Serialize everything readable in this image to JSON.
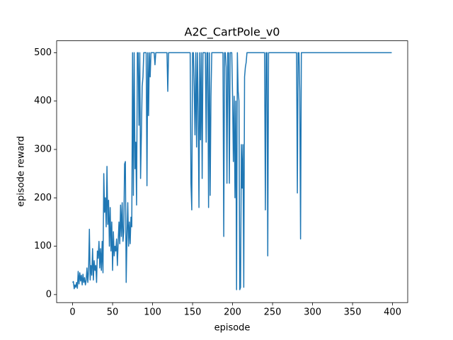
{
  "chart_data": {
    "type": "line",
    "title": "A2C_CartPole_v0",
    "x_label": "episode",
    "y_label": "episode reward",
    "color": "#1f77b4",
    "xlim": [
      -19.95,
      418.95
    ],
    "ylim": [
      -16.6,
      524.6
    ],
    "xticks": [
      0,
      50,
      100,
      150,
      200,
      250,
      300,
      350,
      400
    ],
    "yticks": [
      0,
      100,
      200,
      300,
      400,
      500
    ],
    "x": [
      0,
      1,
      2,
      3,
      4,
      5,
      6,
      7,
      8,
      9,
      10,
      11,
      12,
      13,
      14,
      15,
      16,
      17,
      18,
      19,
      20,
      21,
      22,
      23,
      24,
      25,
      26,
      27,
      28,
      29,
      30,
      31,
      32,
      33,
      34,
      35,
      36,
      37,
      38,
      39,
      40,
      41,
      42,
      43,
      44,
      45,
      46,
      47,
      48,
      49,
      50,
      51,
      52,
      53,
      54,
      55,
      56,
      57,
      58,
      59,
      60,
      61,
      62,
      63,
      64,
      65,
      66,
      67,
      68,
      69,
      70,
      71,
      72,
      73,
      74,
      75,
      76,
      77,
      78,
      79,
      80,
      81,
      82,
      83,
      84,
      85,
      86,
      87,
      88,
      89,
      90,
      91,
      92,
      93,
      94,
      95,
      96,
      97,
      98,
      99,
      100,
      101,
      102,
      103,
      104,
      118,
      119,
      120,
      147,
      148,
      149,
      150,
      151,
      152,
      153,
      154,
      155,
      156,
      157,
      158,
      159,
      160,
      161,
      162,
      163,
      164,
      165,
      166,
      167,
      168,
      169,
      170,
      171,
      172,
      173,
      174,
      175,
      188,
      189,
      190,
      191,
      192,
      193,
      194,
      195,
      196,
      197,
      198,
      199,
      200,
      201,
      202,
      203,
      204,
      205,
      206,
      207,
      208,
      209,
      210,
      211,
      212,
      213,
      214,
      215,
      216,
      217,
      218,
      240,
      241,
      242,
      243,
      244,
      245,
      280,
      281,
      282,
      283,
      284,
      285,
      286,
      399
    ],
    "values": [
      25,
      27,
      12,
      20,
      15,
      25,
      13,
      48,
      22,
      45,
      28,
      40,
      20,
      42,
      25,
      35,
      20,
      30,
      55,
      25,
      50,
      135,
      30,
      60,
      40,
      95,
      30,
      70,
      50,
      60,
      25,
      90,
      75,
      110,
      55,
      95,
      50,
      110,
      45,
      250,
      170,
      200,
      140,
      265,
      145,
      195,
      100,
      180,
      90,
      150,
      50,
      130,
      80,
      100,
      90,
      115,
      60,
      110,
      150,
      105,
      185,
      120,
      190,
      110,
      130,
      270,
      275,
      25,
      120,
      190,
      100,
      150,
      105,
      160,
      140,
      500,
      205,
      500,
      260,
      315,
      185,
      500,
      500,
      350,
      500,
      240,
      330,
      430,
      450,
      500,
      500,
      500,
      500,
      225,
      500,
      370,
      500,
      450,
      500,
      500,
      500,
      500,
      500,
      475,
      500,
      500,
      420,
      500,
      500,
      230,
      175,
      500,
      500,
      430,
      330,
      500,
      305,
      500,
      380,
      180,
      500,
      320,
      500,
      240,
      500,
      500,
      500,
      500,
      315,
      500,
      500,
      180,
      500,
      205,
      410,
      500,
      500,
      500,
      120,
      500,
      500,
      470,
      230,
      500,
      500,
      230,
      500,
      500,
      500,
      410,
      275,
      410,
      200,
      400,
      10,
      500,
      420,
      400,
      10,
      15,
      310,
      220,
      310,
      15,
      450,
      470,
      480,
      500,
      500,
      175,
      500,
      500,
      80,
      500,
      500,
      210,
      500,
      500,
      420,
      115,
      500,
      500
    ]
  }
}
